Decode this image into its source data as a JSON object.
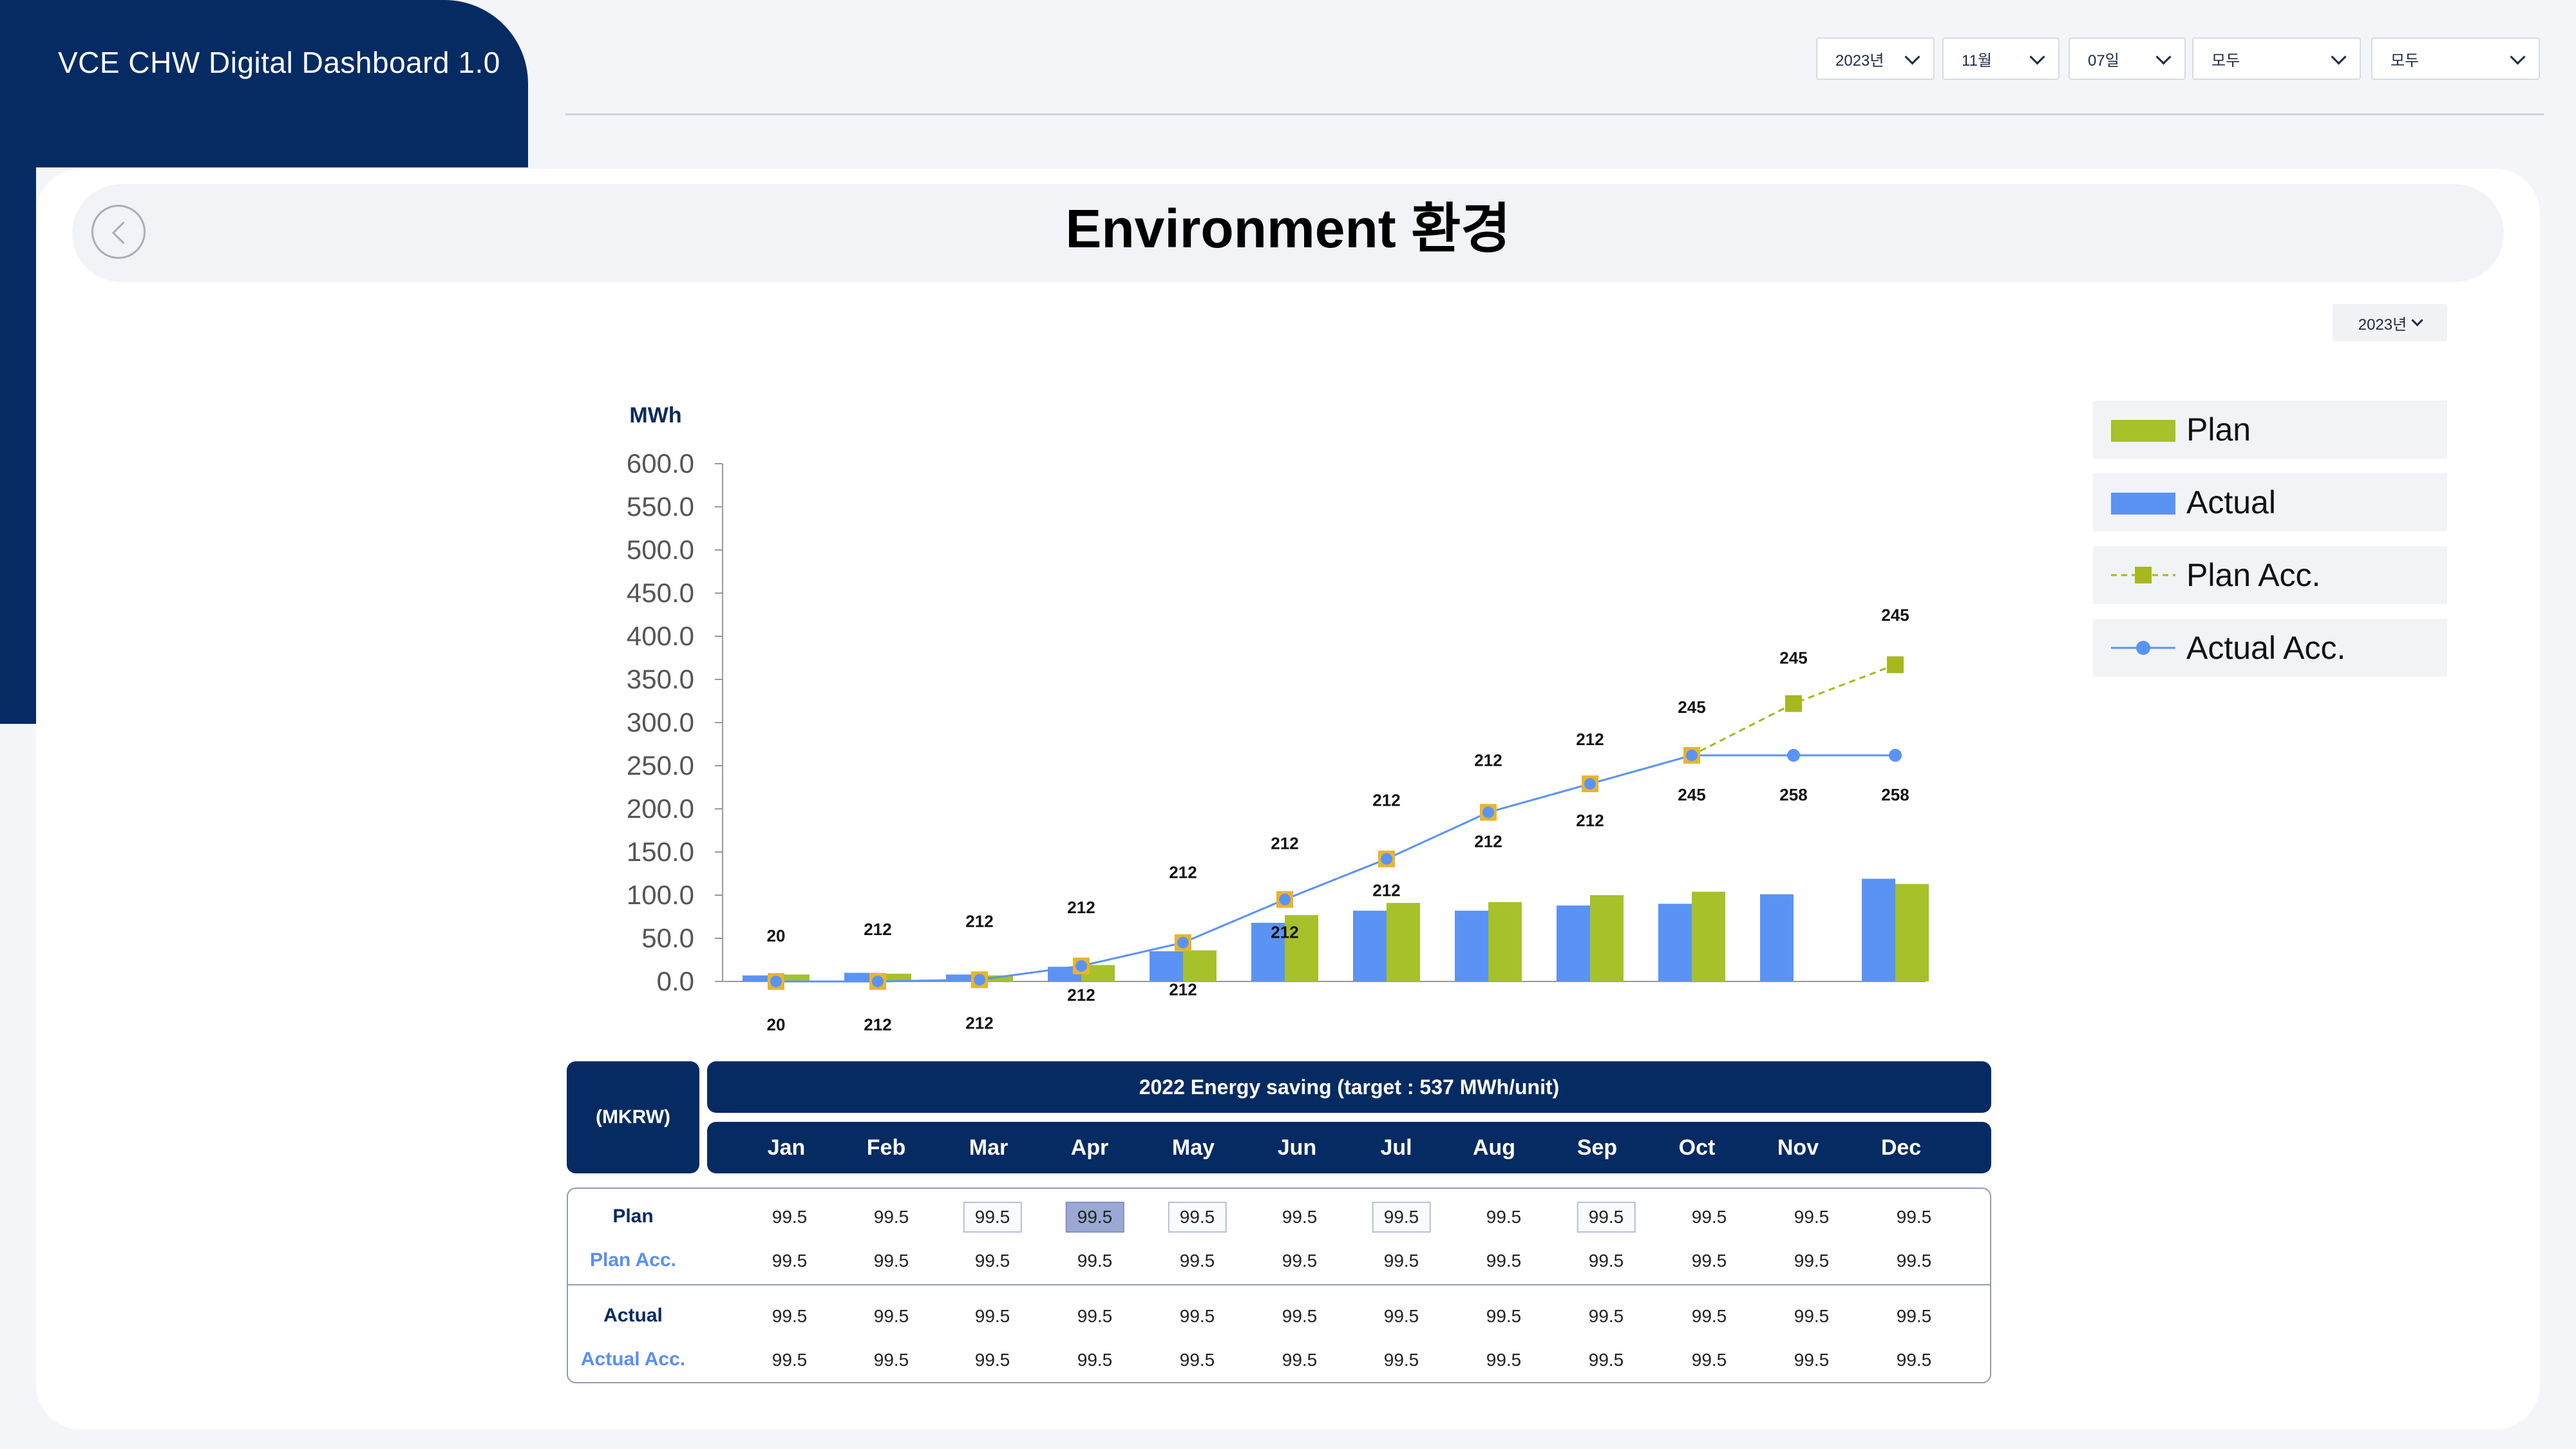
{
  "app": {
    "title": "VCE CHW Digital Dashboard 1.0"
  },
  "filters": [
    {
      "value": "2023년"
    },
    {
      "value": "11월"
    },
    {
      "value": "07일"
    },
    {
      "value": "모두"
    },
    {
      "value": "모두"
    }
  ],
  "page": {
    "title": "Environment 환경",
    "year_select": "2023년"
  },
  "legend": {
    "plan": "Plan",
    "actual": "Actual",
    "plan_acc": "Plan Acc.",
    "actual_acc": "Actual Acc."
  },
  "colors": {
    "navy": "#062b63",
    "plan": "#a6c12a",
    "actual": "#5b93f5",
    "plan_marker": "#a6b81e"
  },
  "chart_data": {
    "type": "bar",
    "ylabel": "MWh",
    "ylim": [
      0,
      600
    ],
    "yticks": [
      "600.0",
      "550.0",
      "500.0",
      "450.0",
      "400.0",
      "350.0",
      "300.0",
      "250.0",
      "200.0",
      "150.0",
      "100.0",
      "50.0",
      "0.0"
    ],
    "categories": [
      "Jan",
      "Feb",
      "Mar",
      "Apr",
      "May",
      "Jun",
      "Jul",
      "Aug",
      "Sep",
      "Oct",
      "Nov",
      "Dec"
    ],
    "series": [
      {
        "name": "Actual",
        "type": "bar",
        "values": [
          7,
          10,
          8,
          17,
          35,
          68,
          82,
          82,
          88,
          90,
          101,
          119
        ]
      },
      {
        "name": "Plan",
        "type": "bar",
        "values": [
          8,
          9,
          7,
          19,
          36,
          77,
          91,
          92,
          100,
          104,
          null,
          113
        ]
      },
      {
        "name": "Plan Acc.",
        "type": "line",
        "values": [
          0,
          0,
          2,
          18,
          45,
          95,
          142,
          196,
          229,
          262,
          322,
          367
        ]
      },
      {
        "name": "Actual Acc.",
        "type": "line",
        "values": [
          0,
          0,
          2,
          18,
          45,
          95,
          142,
          196,
          229,
          262,
          262,
          262
        ]
      }
    ],
    "labels_upper": [
      "20",
      "212",
      "212",
      "212",
      "212",
      "212",
      "212",
      "212",
      "212",
      "245",
      "245",
      "245"
    ],
    "labels_lower": [
      "20",
      "212",
      "212",
      "212",
      "212",
      "212",
      "212",
      "212",
      "212",
      "245",
      "258",
      "258"
    ]
  },
  "table": {
    "unit": "(MKRW)",
    "title": "2022 Energy saving (target : 537 MWh/unit)",
    "months": [
      "Jan",
      "Feb",
      "Mar",
      "Apr",
      "May",
      "Jun",
      "Jul",
      "Aug",
      "Sep",
      "Oct",
      "Nov",
      "Dec"
    ],
    "rows": [
      {
        "label": "Plan",
        "values": [
          "99.5",
          "99.5",
          "99.5",
          "99.5",
          "99.5",
          "99.5",
          "99.5",
          "99.5",
          "99.5",
          "99.5",
          "99.5",
          "99.5"
        ]
      },
      {
        "label": "Plan Acc.",
        "values": [
          "99.5",
          "99.5",
          "99.5",
          "99.5",
          "99.5",
          "99.5",
          "99.5",
          "99.5",
          "99.5",
          "99.5",
          "99.5",
          "99.5"
        ]
      },
      {
        "label": "Actual",
        "values": [
          "99.5",
          "99.5",
          "99.5",
          "99.5",
          "99.5",
          "99.5",
          "99.5",
          "99.5",
          "99.5",
          "99.5",
          "99.5",
          "99.5"
        ]
      },
      {
        "label": "Actual Acc.",
        "values": [
          "99.5",
          "99.5",
          "99.5",
          "99.5",
          "99.5",
          "99.5",
          "99.5",
          "99.5",
          "99.5",
          "99.5",
          "99.5",
          "99.5"
        ]
      }
    ]
  }
}
